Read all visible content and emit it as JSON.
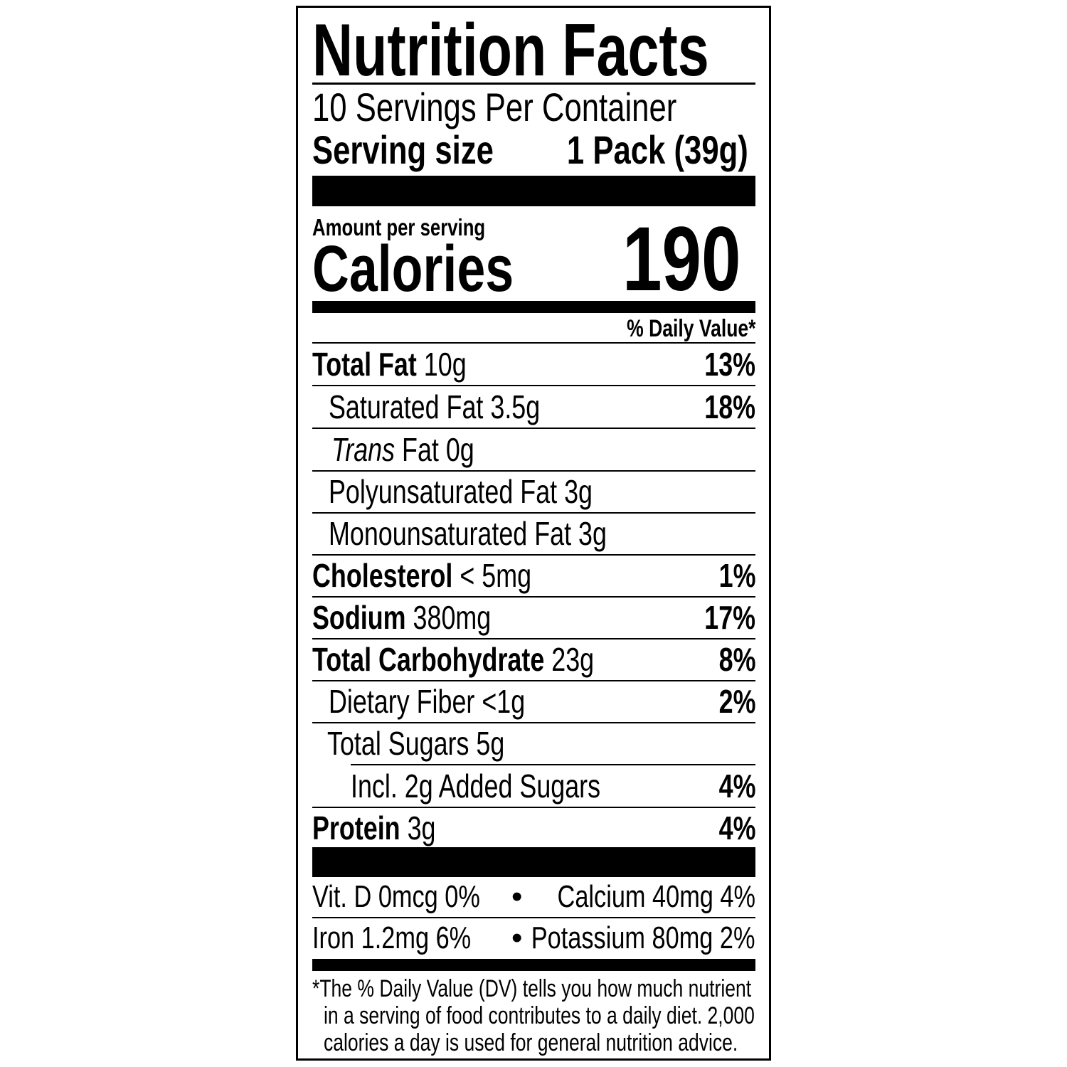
{
  "title": "Nutrition Facts",
  "servings_per_container": "10 Servings Per Container",
  "serving_size_label": "Serving size",
  "serving_size_value": "1 Pack (39g)",
  "amount_per_serving": "Amount per serving",
  "calories_label": "Calories",
  "calories_value": "190",
  "daily_value_header": "% Daily Value*",
  "nutrients": [
    {
      "name": "Total Fat",
      "amount": "10g",
      "dv": "13%"
    },
    {
      "name": "Saturated Fat",
      "amount": "3.5g",
      "dv": "18%"
    },
    {
      "name": "Trans",
      "name_suffix": "Fat",
      "amount": "0g",
      "dv": ""
    },
    {
      "name": "Polyunsaturated Fat",
      "amount": "3g",
      "dv": ""
    },
    {
      "name": "Monounsaturated Fat",
      "amount": "3g",
      "dv": ""
    },
    {
      "name": "Cholesterol",
      "amount": "< 5mg",
      "dv": "1%"
    },
    {
      "name": "Sodium",
      "amount": "380mg",
      "dv": "17%"
    },
    {
      "name": "Total Carbohydrate",
      "amount": "23g",
      "dv": "8%"
    },
    {
      "name": "Dietary Fiber",
      "amount": "<1g",
      "dv": "2%"
    },
    {
      "name": "Total Sugars",
      "amount": "5g",
      "dv": ""
    },
    {
      "name": "Incl. 2g Added Sugars",
      "amount": "",
      "dv": "4%"
    },
    {
      "name": "Protein",
      "amount": "3g",
      "dv": "4%"
    }
  ],
  "vitamins": [
    {
      "left": "Vit. D 0mcg 0%",
      "right": "Calcium 40mg 4%"
    },
    {
      "left": "Iron 1.2mg 6%",
      "right": "Potassium 80mg 2%"
    }
  ],
  "bullet": "•",
  "footnote": [
    "*The % Daily Value (DV) tells you how much nutrient",
    "in a serving of food contributes to a daily diet. 2,000",
    "calories a day is used for general nutrition advice."
  ]
}
